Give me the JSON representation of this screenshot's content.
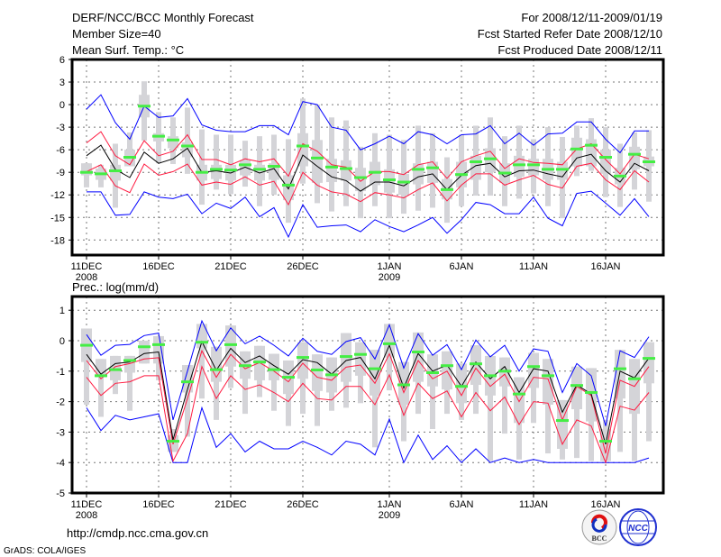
{
  "header": {
    "title": "DERF/NCC/BCC Monthly Forecast",
    "member_size": "Member Size=40",
    "variable": "Mean Surf. Temp.: °C",
    "period": "For 2008/12/11-2009/01/19",
    "start_date": "Fcst Started Refer Date 2008/12/10",
    "produced_date": "Fcst Produced Date 2008/12/11"
  },
  "footer": {
    "url": "http://cmdp.ncc.cma.gov.cn",
    "credit": "GrADS: COLA/IGES"
  },
  "logos": {
    "bcc": "BCC",
    "ncc": "NCC"
  },
  "colors": {
    "envelope": "#0000ff",
    "inner": "#ff1a40",
    "mean": "#000000",
    "obs": "#44ee44",
    "spread": "#d4d4d8"
  },
  "chart_data": [
    {
      "type": "box-line",
      "title": "Mean Surf. Temp.: °C",
      "ylim": [
        -20,
        6
      ],
      "yticks": [
        6,
        3,
        0,
        -3,
        -6,
        -9,
        -12,
        -15,
        -18
      ],
      "ytick_labels": [
        "6",
        "3",
        "0",
        "-3",
        "-6",
        "-9",
        "-12",
        "-15",
        "-18"
      ],
      "xticks": [
        {
          "day": 0,
          "label": "11DEC",
          "sub": "2008"
        },
        {
          "day": 5,
          "label": "16DEC"
        },
        {
          "day": 10,
          "label": "21DEC"
        },
        {
          "day": 15,
          "label": "26DEC"
        },
        {
          "day": 21,
          "label": "1JAN",
          "sub": "2009"
        },
        {
          "day": 26,
          "label": "6JAN"
        },
        {
          "day": 31,
          "label": "11JAN"
        },
        {
          "day": 36,
          "label": "16JAN"
        }
      ],
      "grid": true,
      "blue_hi": [
        -0.6,
        1.3,
        -2.4,
        -4.6,
        -0.2,
        -1.7,
        -1.5,
        0.8,
        -2.7,
        -3.4,
        -3.6,
        -3.6,
        -2.8,
        -2.8,
        -4.0,
        0.4,
        0,
        -3.0,
        -3.4,
        -6.0,
        -5.2,
        -4.2,
        -5.2,
        -3.6,
        -4.0,
        -5.2,
        -4.0,
        -3.9,
        -2.8,
        -5.2,
        -3.8,
        -5.4,
        -3.9,
        -3.8,
        -2.3,
        -2.3,
        -4.6,
        -6.4,
        -3.5,
        -3.5
      ],
      "red_hi": [
        -5.1,
        -3.6,
        -6.8,
        -8.0,
        -4.8,
        -6.8,
        -6.2,
        -4.0,
        -7.3,
        -7.3,
        -8.0,
        -7.2,
        -7.6,
        -7.2,
        -9.5,
        -5.2,
        -6.2,
        -8.0,
        -8.3,
        -10.2,
        -8.9,
        -8.9,
        -9.3,
        -8.0,
        -7.6,
        -9.8,
        -7.6,
        -6.8,
        -6.2,
        -8.5,
        -7.2,
        -7.7,
        -7.8,
        -8.0,
        -5.9,
        -5.2,
        -7.3,
        -9.2,
        -6.6,
        -7.2
      ],
      "mean": [
        -6.8,
        -5.4,
        -8.6,
        -9.7,
        -6.3,
        -7.8,
        -7.2,
        -5.8,
        -9.0,
        -8.8,
        -9.1,
        -8.3,
        -9.1,
        -8.5,
        -11.2,
        -6.7,
        -8.2,
        -9.6,
        -10.1,
        -11.5,
        -10.3,
        -10.3,
        -10.8,
        -9.6,
        -9.2,
        -11.3,
        -9.4,
        -8.1,
        -7.8,
        -9.6,
        -8.8,
        -8.7,
        -9.2,
        -9.6,
        -7.1,
        -6.6,
        -8.8,
        -10.3,
        -7.8,
        -8.8
      ],
      "red_lo": [
        -8.9,
        -8.0,
        -10.8,
        -11.7,
        -7.9,
        -9.4,
        -8.9,
        -7.9,
        -10.7,
        -10.3,
        -10.6,
        -9.6,
        -10.7,
        -10.2,
        -13.3,
        -9.0,
        -10.7,
        -11.6,
        -11.9,
        -12.9,
        -11.7,
        -12.0,
        -12.4,
        -11.3,
        -10.4,
        -12.8,
        -10.7,
        -9.2,
        -9.2,
        -10.7,
        -10.0,
        -9.4,
        -10.6,
        -11.1,
        -8.2,
        -7.8,
        -10.0,
        -11.3,
        -8.8,
        -10.3
      ],
      "blue_lo": [
        -11.6,
        -11.6,
        -14.7,
        -14.6,
        -11.6,
        -12.3,
        -12.5,
        -11.9,
        -14.5,
        -13.1,
        -13.8,
        -12.3,
        -14.9,
        -13.7,
        -17.6,
        -13.3,
        -16.3,
        -16.1,
        -16.0,
        -16.9,
        -15.3,
        -16.2,
        -16.9,
        -16.0,
        -15.0,
        -17.1,
        -15.3,
        -13.0,
        -13.3,
        -14.5,
        -14.5,
        -12.3,
        -15.1,
        -16.1,
        -11.8,
        -11.5,
        -13.1,
        -14.7,
        -12.5,
        -14.9
      ],
      "obs": [
        -9.0,
        -9.2,
        -8.8,
        -7.0,
        -0.2,
        -4.2,
        -4.7,
        -5.5,
        -9.0,
        -8.6,
        -8.7,
        -8.0,
        -8.6,
        -8.2,
        -10.7,
        -5.5,
        -7.1,
        -8.3,
        -8.5,
        -9.7,
        -9.0,
        -10.0,
        -10.3,
        -8.6,
        -8.4,
        -11.3,
        -9.3,
        -7.6,
        -7.2,
        -9.1,
        -8.0,
        -8.0,
        -8.6,
        -8.6,
        -5.9,
        -5.4,
        -7.0,
        -9.5,
        -6.6,
        -7.6
      ],
      "range_hi": [
        -7.8,
        -8.0,
        -5.2,
        -3.7,
        3.1,
        -1.0,
        -1.7,
        -0.4,
        -3.3,
        -4.0,
        -4.0,
        -4.8,
        -4.2,
        -4.0,
        -4.6,
        0.8,
        0,
        -1.7,
        -2.1,
        -5.6,
        -3.8,
        -4.0,
        -4.7,
        -2.8,
        -3.8,
        -7.0,
        -4.0,
        -2.8,
        -1.7,
        -4.2,
        -2.8,
        -4.6,
        -3.0,
        -4.3,
        -2.8,
        -1.8,
        -3.0,
        -5.2,
        -3.7,
        -3.4
      ],
      "range_lo": [
        -11.0,
        -11.0,
        -13.7,
        -8.2,
        -4.8,
        -7.8,
        -7.9,
        -9.2,
        -13.3,
        -11.3,
        -11.9,
        -10.9,
        -13.5,
        -12.0,
        -15.7,
        -10.5,
        -13.1,
        -14.2,
        -13.5,
        -15.1,
        -13.5,
        -15.1,
        -14.5,
        -14.1,
        -13.7,
        -15.7,
        -13.5,
        -12.1,
        -12.1,
        -13.5,
        -12.5,
        -11.8,
        -13.5,
        -15.1,
        -9.5,
        -8.8,
        -12.3,
        -13.6,
        -11.3,
        -12.9
      ],
      "box_hi": [
        -7.8,
        -8.5,
        -8.0,
        -6.0,
        1.3,
        -3.8,
        -4.2,
        -5.0,
        -8.0,
        -8.0,
        -8.0,
        -7.4,
        -8.0,
        -7.8,
        -9.4,
        -3.8,
        -4.7,
        -7.2,
        -7.4,
        -8.4,
        -7.6,
        -8.6,
        -9.2,
        -7.8,
        -7.6,
        -9.9,
        -7.6,
        -6.8,
        -5.8,
        -7.8,
        -6.8,
        -7.2,
        -7.2,
        -7.6,
        -4.4,
        -4.6,
        -6.0,
        -8.4,
        -5.6,
        -6.9
      ],
      "box_lo": [
        -9.4,
        -10.0,
        -10.1,
        -8.2,
        -1.7,
        -4.9,
        -5.8,
        -7.0,
        -10.1,
        -9.9,
        -10.1,
        -9.4,
        -10.1,
        -10.0,
        -12.7,
        -8.2,
        -10.4,
        -10.3,
        -10.1,
        -11.5,
        -10.7,
        -11.7,
        -12.0,
        -10.6,
        -10.4,
        -12.6,
        -11.0,
        -10.0,
        -9.0,
        -10.4,
        -9.6,
        -9.4,
        -10.0,
        -10.0,
        -8.2,
        -8.2,
        -9.2,
        -10.6,
        -8.6,
        -8.2
      ]
    },
    {
      "type": "box-line",
      "title": "Prec.: log(mm/d)",
      "ylim": [
        -5,
        1.45
      ],
      "yticks": [
        1,
        0,
        -1,
        -2,
        -3,
        -4,
        -5
      ],
      "ytick_labels": [
        "1",
        "0",
        "-1",
        "-2",
        "-3",
        "-4",
        "-5"
      ],
      "xticks": [
        {
          "day": 0,
          "label": "11DEC",
          "sub": "2008"
        },
        {
          "day": 5,
          "label": "16DEC"
        },
        {
          "day": 10,
          "label": "21DEC"
        },
        {
          "day": 15,
          "label": "26DEC"
        },
        {
          "day": 21,
          "label": "1JAN",
          "sub": "2009"
        },
        {
          "day": 26,
          "label": "6JAN"
        },
        {
          "day": 31,
          "label": "11JAN"
        },
        {
          "day": 36,
          "label": "16JAN"
        }
      ],
      "grid": true,
      "blue_hi": [
        0.2,
        -0.48,
        -0.15,
        -0.12,
        0.17,
        0.25,
        -2.6,
        -1.0,
        0.65,
        -0.33,
        0.42,
        -0.1,
        0.15,
        -0.15,
        -0.5,
        0.08,
        -0.35,
        -0.45,
        -0.03,
        0.1,
        -0.6,
        0.52,
        -0.9,
        0.23,
        -0.48,
        -0.13,
        -0.95,
        0.02,
        -0.53,
        -0.15,
        -1.0,
        -0.27,
        -0.35,
        -1.7,
        -0.75,
        -1.15,
        -2.8,
        -0.33,
        -0.55,
        0.13
      ],
      "red_hi": [
        -0.65,
        -1.25,
        -0.85,
        -0.75,
        -0.6,
        -0.56,
        -3.4,
        -1.9,
        -0.33,
        -1.2,
        -0.45,
        -0.92,
        -0.72,
        -1.0,
        -1.35,
        -0.74,
        -1.2,
        -1.3,
        -0.87,
        -0.8,
        -1.4,
        -0.43,
        -1.7,
        -0.65,
        -1.25,
        -1.0,
        -1.8,
        -0.9,
        -1.5,
        -1.1,
        -2.0,
        -1.2,
        -1.25,
        -2.6,
        -1.5,
        -1.8,
        -3.7,
        -1.3,
        -1.5,
        -0.85
      ],
      "mean": [
        -0.45,
        -1.1,
        -0.75,
        -0.7,
        -0.42,
        -0.37,
        -3.25,
        -1.6,
        -0.03,
        -0.97,
        -0.25,
        -0.72,
        -0.5,
        -0.82,
        -1.1,
        -0.62,
        -0.72,
        -1.1,
        -0.65,
        -0.55,
        -1.25,
        -0.15,
        -1.55,
        -0.42,
        -1.0,
        -0.8,
        -1.5,
        -0.7,
        -1.25,
        -0.85,
        -1.7,
        -0.92,
        -1.0,
        -2.35,
        -1.45,
        -1.75,
        -3.4,
        -1.0,
        -1.22,
        -0.57
      ],
      "red_lo": [
        -1.2,
        -1.8,
        -1.4,
        -1.35,
        -1.15,
        -1.15,
        -3.95,
        -3.05,
        -0.85,
        -1.9,
        -1.15,
        -1.6,
        -1.45,
        -1.7,
        -2.0,
        -1.4,
        -1.9,
        -1.95,
        -1.5,
        -1.5,
        -2.1,
        -1.12,
        -2.45,
        -1.4,
        -1.9,
        -1.65,
        -2.5,
        -1.7,
        -2.3,
        -1.85,
        -2.75,
        -2.0,
        -2.05,
        -3.4,
        -2.6,
        -2.8,
        -4.0,
        -2.15,
        -2.28,
        -1.7
      ],
      "blue_lo": [
        -2.2,
        -2.95,
        -2.45,
        -2.6,
        -2.5,
        -2.4,
        -4.0,
        -4.0,
        -2.2,
        -3.5,
        -3.05,
        -3.65,
        -3.3,
        -3.55,
        -3.55,
        -3.3,
        -3.5,
        -3.75,
        -3.3,
        -3.4,
        -3.75,
        -2.57,
        -4.0,
        -3.1,
        -3.9,
        -3.45,
        -4.0,
        -3.55,
        -4.0,
        -3.85,
        -4.0,
        -3.9,
        -4.0,
        -4.0,
        -4.0,
        -4.0,
        -4.0,
        -4.0,
        -4.0,
        -3.85
      ],
      "obs": [
        -0.15,
        -1.15,
        -0.95,
        -0.65,
        -0.2,
        -0.13,
        -3.3,
        -1.35,
        -0.05,
        -0.95,
        -0.13,
        -0.82,
        -0.7,
        -0.95,
        -1.2,
        -0.55,
        -0.96,
        -1.12,
        -0.52,
        -0.45,
        -0.92,
        -0.1,
        -1.45,
        -0.37,
        -1.05,
        -0.82,
        -1.5,
        -0.76,
        -1.15,
        -1.0,
        -1.75,
        -0.85,
        -1.15,
        -2.62,
        -1.47,
        -1.7,
        -3.3,
        -0.92,
        -1.25,
        -0.58
      ],
      "range_hi": [
        0.4,
        -0.6,
        -0.5,
        -0.5,
        0,
        0.15,
        -2.9,
        -0.8,
        0.55,
        -0.2,
        0.5,
        -0.35,
        -0.17,
        -0.43,
        -0.65,
        -0.05,
        -0.45,
        -0.55,
        0.25,
        -0.05,
        -0.3,
        0.55,
        -0.7,
        0.27,
        -0.45,
        -0.35,
        -0.75,
        -0.15,
        -0.5,
        -0.55,
        -1.2,
        -0.4,
        -0.6,
        -1.95,
        -0.85,
        -0.9,
        -2.6,
        -0.3,
        -0.6,
        -0.05
      ],
      "range_lo": [
        -2.1,
        -2.5,
        -1.75,
        -2.3,
        -0.75,
        -1.3,
        -3.65,
        -3.15,
        -1.9,
        -2.6,
        -1.55,
        -2.4,
        -1.85,
        -2.3,
        -2.8,
        -2.4,
        -2.8,
        -2.3,
        -2.2,
        -2.05,
        -3.5,
        -1.63,
        -3.3,
        -2.4,
        -2.9,
        -2.4,
        -2.6,
        -2.4,
        -3.95,
        -3.05,
        -3.9,
        -2.7,
        -3.7,
        -3.9,
        -3.85,
        -3.95,
        -3.95,
        -3.65,
        -3.95,
        -3.3
      ],
      "box_hi": [
        0.4,
        -0.6,
        -0.5,
        -0.5,
        0,
        0.15,
        -3.1,
        -0.8,
        0.55,
        -0.2,
        0.5,
        -0.35,
        -0.17,
        -0.43,
        -0.65,
        -0.05,
        -0.45,
        -0.55,
        0.25,
        -0.05,
        -0.3,
        0.55,
        -0.7,
        0.27,
        -0.45,
        -0.35,
        -0.75,
        -0.15,
        -0.5,
        -0.55,
        -1.2,
        -0.4,
        -0.6,
        -1.95,
        -0.85,
        -0.9,
        -2.9,
        -0.3,
        -0.6,
        -0.05
      ],
      "box_lo": [
        -0.7,
        -1.2,
        -1.3,
        -1.05,
        -0.75,
        -0.75,
        -3.65,
        -1.7,
        -0.25,
        -1.35,
        -0.85,
        -1.25,
        -1.3,
        -1.3,
        -1.75,
        -1.25,
        -1.65,
        -1.7,
        -1.35,
        -1.15,
        -1.8,
        -0.55,
        -2.1,
        -1.35,
        -1.5,
        -1.6,
        -2.05,
        -1.45,
        -1.8,
        -1.5,
        -2.7,
        -1.55,
        -2.1,
        -3.55,
        -2.25,
        -2.65,
        -3.95,
        -1.9,
        -2.4,
        -1.4
      ]
    }
  ]
}
